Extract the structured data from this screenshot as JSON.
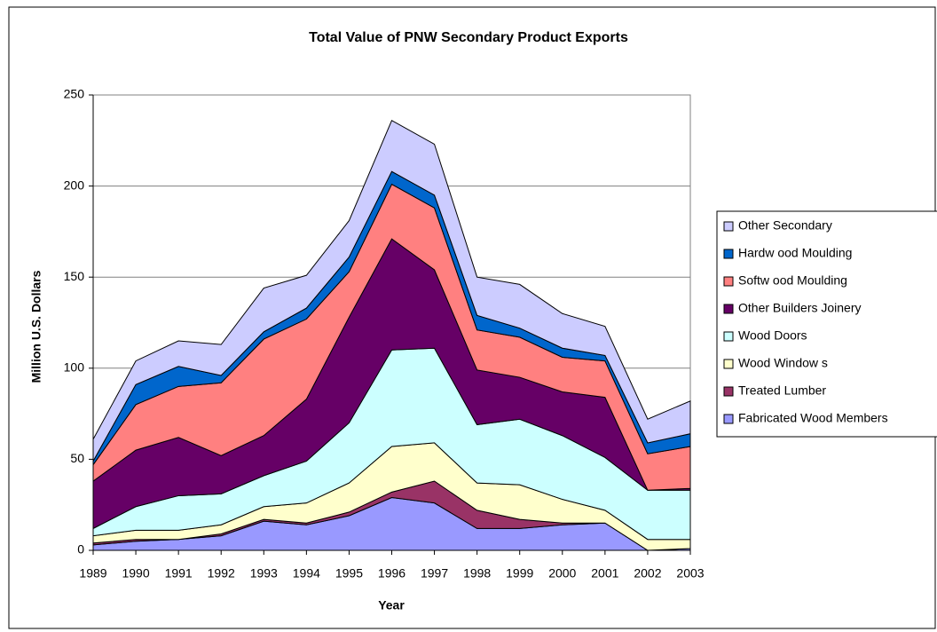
{
  "chart_data": {
    "type": "stacked-area",
    "title": "Total Value of PNW Secondary Product Exports",
    "x_label": "Year",
    "y_label": "Million U.S. Dollars",
    "x": [
      1989,
      1990,
      1991,
      1992,
      1993,
      1994,
      1995,
      1996,
      1997,
      1998,
      1999,
      2000,
      2001,
      2002,
      2003
    ],
    "xlim": [
      1989,
      2003
    ],
    "ylim": [
      0,
      250
    ],
    "yticks": [
      0,
      50,
      100,
      150,
      200,
      250
    ],
    "grid": true,
    "legend": "right",
    "series": [
      {
        "name": "Fabricated Wood Members",
        "color": "#9999ff",
        "values": [
          3,
          5,
          6,
          8,
          16,
          14,
          19,
          29,
          26,
          12,
          12,
          14,
          15,
          0,
          1
        ]
      },
      {
        "name": "Treated Lumber",
        "color": "#993366",
        "values": [
          1,
          1,
          0,
          1,
          1,
          1,
          2,
          3,
          12,
          10,
          5,
          1,
          0,
          0,
          0
        ]
      },
      {
        "name": "Wood Window s",
        "color": "#ffffcc",
        "values": [
          4,
          5,
          5,
          5,
          7,
          11,
          16,
          25,
          21,
          15,
          19,
          13,
          7,
          6,
          5
        ]
      },
      {
        "name": "Wood Doors",
        "color": "#ccffff",
        "values": [
          4,
          13,
          19,
          17,
          17,
          23,
          33,
          53,
          52,
          32,
          36,
          35,
          29,
          27,
          27
        ]
      },
      {
        "name": "Other Builders Joinery",
        "color": "#660066",
        "values": [
          26,
          31,
          32,
          21,
          22,
          34,
          58,
          61,
          43,
          30,
          23,
          24,
          33,
          0,
          1
        ]
      },
      {
        "name": "Softw ood Moulding",
        "color": "#ff8080",
        "values": [
          9,
          25,
          28,
          40,
          53,
          44,
          25,
          30,
          34,
          22,
          22,
          19,
          20,
          20,
          23
        ]
      },
      {
        "name": "Hardw ood Moulding",
        "color": "#0066cc",
        "values": [
          2,
          11,
          11,
          4,
          4,
          6,
          8,
          7,
          7,
          8,
          5,
          5,
          3,
          6,
          7
        ]
      },
      {
        "name": "Other Secondary",
        "color": "#ccccff",
        "values": [
          12,
          13,
          14,
          17,
          24,
          18,
          20,
          28,
          28,
          21,
          24,
          19,
          16,
          13,
          18
        ]
      }
    ]
  }
}
